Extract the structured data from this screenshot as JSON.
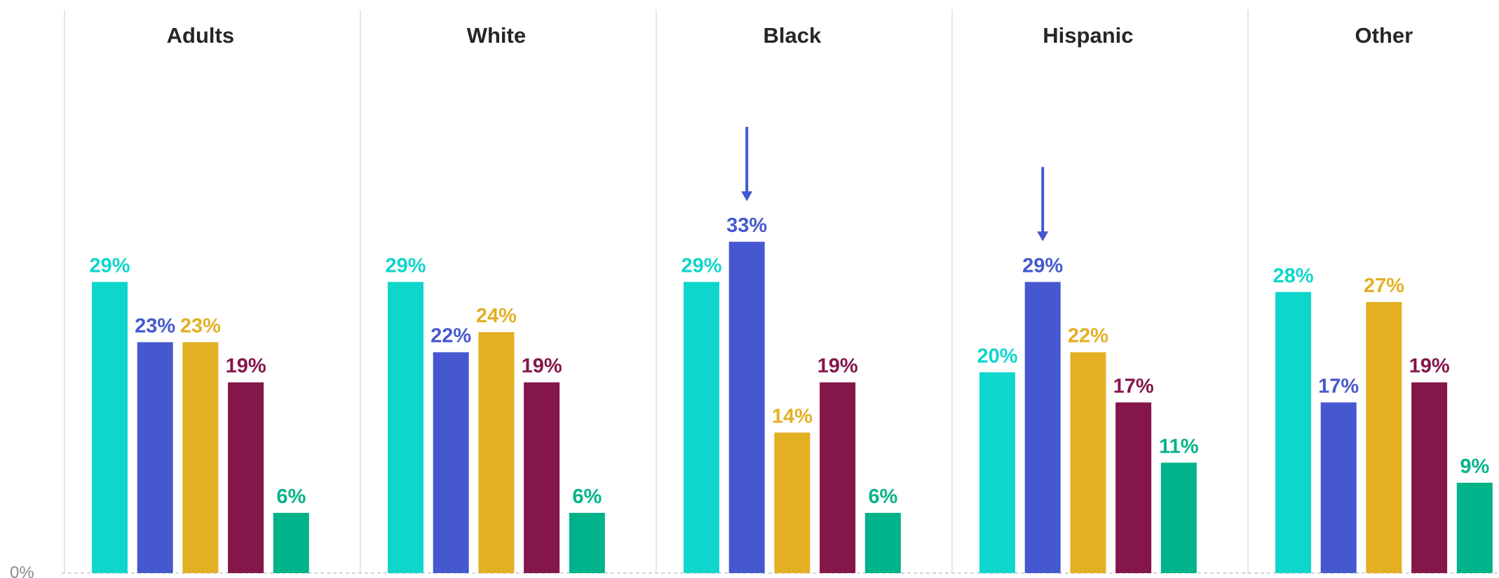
{
  "chart_data": {
    "type": "bar",
    "panels": [
      "Adults",
      "White",
      "Black",
      "Hispanic",
      "Other"
    ],
    "series": [
      {
        "color": "#0fd6cc",
        "values": [
          29,
          29,
          29,
          20,
          28
        ]
      },
      {
        "color": "#4658cf",
        "values": [
          23,
          22,
          33,
          29,
          17
        ]
      },
      {
        "color": "#e3b024",
        "values": [
          23,
          24,
          14,
          22,
          27
        ]
      },
      {
        "color": "#84164a",
        "values": [
          19,
          19,
          19,
          17,
          19
        ]
      },
      {
        "color": "#00b38a",
        "values": [
          6,
          6,
          6,
          11,
          9
        ]
      }
    ],
    "value_suffix": "%",
    "y_axis_label": "0%",
    "ylim": [
      0,
      56
    ],
    "annotations": [
      {
        "type": "arrow",
        "panel": "Black",
        "series_index": 1,
        "color": "#4658cf"
      },
      {
        "type": "arrow",
        "panel": "Hispanic",
        "series_index": 1,
        "color": "#4658cf"
      }
    ],
    "grid": false,
    "legend": "none"
  }
}
